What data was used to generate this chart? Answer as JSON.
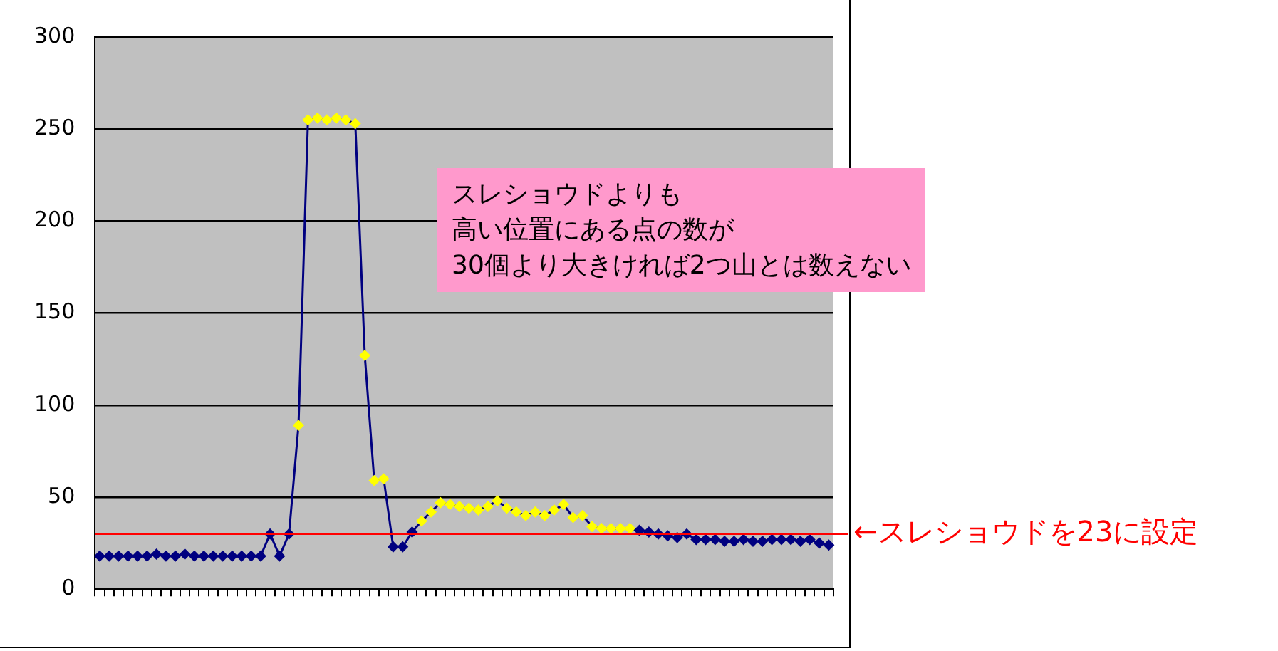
{
  "chart_data": {
    "type": "line",
    "categories": [
      null,
      null,
      null,
      null,
      null,
      null,
      null,
      null,
      null,
      null,
      null,
      null,
      null,
      null,
      null,
      null,
      null,
      null,
      null,
      null,
      null,
      null,
      null,
      null,
      null,
      null,
      null,
      null,
      null,
      null,
      null,
      null,
      null,
      null,
      null,
      null,
      null,
      null,
      null,
      null,
      null,
      null,
      null,
      null,
      null,
      null,
      null,
      null,
      null,
      null,
      null,
      null,
      null,
      null,
      null,
      null,
      null,
      null,
      null,
      null,
      null,
      null,
      null,
      null,
      null,
      null,
      null,
      null,
      null,
      null,
      null,
      null,
      null,
      null,
      null,
      null,
      null,
      null
    ],
    "series": [
      {
        "color": "#000080",
        "values": [
          18,
          18,
          18,
          18,
          18,
          18,
          19,
          18,
          18,
          19,
          18,
          18,
          18,
          18,
          18,
          18,
          18,
          18,
          30,
          18,
          30,
          89,
          255,
          256,
          255,
          256,
          255,
          253,
          127,
          59,
          60,
          23,
          23,
          31,
          37,
          42,
          47,
          46,
          45,
          44,
          43,
          45,
          48,
          44,
          42,
          40,
          42,
          40,
          43,
          46,
          39,
          40,
          34,
          33,
          33,
          33,
          33,
          32,
          31,
          30,
          29,
          28,
          30,
          27,
          27,
          27,
          26,
          26,
          27,
          26,
          26,
          27,
          27,
          27,
          26,
          27,
          25,
          24
        ],
        "colors": [
          "#000080",
          "#000080",
          "#000080",
          "#000080",
          "#000080",
          "#000080",
          "#000080",
          "#000080",
          "#000080",
          "#000080",
          "#000080",
          "#000080",
          "#000080",
          "#000080",
          "#000080",
          "#000080",
          "#000080",
          "#000080",
          "#000080",
          "#000080",
          "#000080",
          "#ffff00",
          "#ffff00",
          "#ffff00",
          "#ffff00",
          "#ffff00",
          "#ffff00",
          "#ffff00",
          "#ffff00",
          "#ffff00",
          "#ffff00",
          "#000080",
          "#000080",
          "#000080",
          "#ffff00",
          "#ffff00",
          "#ffff00",
          "#ffff00",
          "#ffff00",
          "#ffff00",
          "#ffff00",
          "#ffff00",
          "#ffff00",
          "#ffff00",
          "#ffff00",
          "#ffff00",
          "#ffff00",
          "#ffff00",
          "#ffff00",
          "#ffff00",
          "#ffff00",
          "#ffff00",
          "#ffff00",
          "#ffff00",
          "#ffff00",
          "#ffff00",
          "#ffff00",
          "#000080",
          "#000080",
          "#000080",
          "#000080",
          "#000080",
          "#000080",
          "#000080",
          "#000080",
          "#000080",
          "#000080",
          "#000080",
          "#000080",
          "#000080",
          "#000080",
          "#000080",
          "#000080",
          "#000080",
          "#000080",
          "#000080",
          "#000080",
          "#000080"
        ]
      }
    ],
    "ylim": [
      0,
      300
    ],
    "yticks": [
      0,
      50,
      100,
      150,
      200,
      250,
      300
    ],
    "grid": "y",
    "legend": false,
    "marker": "diamond",
    "line_style": "solid",
    "ref_lines": [
      {
        "axis": "y",
        "value": 30,
        "label": "←スレショウドを23に設定",
        "color": "#ff0000"
      }
    ],
    "annotations": [
      "スレショウドよりも",
      "高い位置にある点の数が",
      "30個より大きければ2つ山とは数えない"
    ]
  }
}
